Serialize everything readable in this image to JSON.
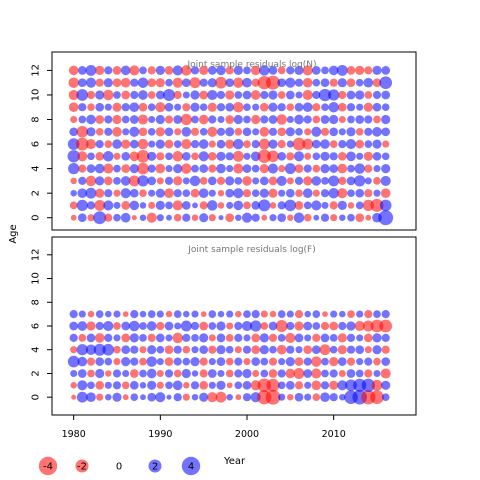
{
  "chart_data": {
    "type": "scatter",
    "subtype": "bubble",
    "ylabel": "Age",
    "xlabel": "Year",
    "x_ticks": [
      1980,
      1990,
      2000,
      2010
    ],
    "x_range": [
      1977.5,
      2019.5
    ],
    "y_ticks": [
      0,
      2,
      4,
      6,
      8,
      10,
      12
    ],
    "colors": {
      "positive": "#0000ff",
      "negative": "#ff0000",
      "opacity": 0.55
    },
    "panels": [
      {
        "id": "panel-n",
        "title": "Joint sample residuals log(N)",
        "ylim": [
          -1,
          13.5
        ],
        "ages": [
          0,
          1,
          2,
          3,
          4,
          5,
          6,
          7,
          8,
          9,
          10,
          11,
          12
        ],
        "years": [
          1980,
          2016
        ],
        "rows": [
          [
            -0.4,
            0.9,
            -0.6,
            2.0,
            -0.8,
            0.7,
            1.1,
            -0.3,
            0.5,
            -1.2,
            0.6,
            0.4,
            -0.7,
            0.8,
            -0.5,
            1.0,
            -0.6,
            0.3,
            -0.9,
            0.5,
            1.2,
            0.8,
            -0.4,
            0.6,
            0.9,
            -0.5,
            1.3,
            -0.7,
            0.4,
            0.8,
            -0.6,
            0.5,
            0.7,
            -0.9,
            -0.4,
            1.1,
            2.6
          ],
          [
            -0.7,
            1.5,
            0.8,
            -1.4,
            1.2,
            0.6,
            -0.9,
            1.1,
            0.5,
            -0.6,
            1.0,
            0.7,
            -1.2,
            0.9,
            0.4,
            -0.8,
            1.3,
            -0.5,
            0.6,
            1.1,
            -0.7,
            0.9,
            1.7,
            -0.5,
            0.8,
            1.6,
            -0.9,
            0.7,
            1.2,
            0.6,
            -0.8,
            1.0,
            -0.5,
            0.7,
            -1.5,
            -2.0,
            1.6
          ],
          [
            0.5,
            1.1,
            1.4,
            -1.0,
            0.8,
            -0.6,
            1.2,
            0.9,
            -0.7,
            0.6,
            1.0,
            -1.1,
            0.8,
            0.7,
            -0.9,
            1.1,
            0.6,
            -0.5,
            0.9,
            1.2,
            -0.8,
            0.7,
            1.0,
            -1.0,
            0.6,
            0.9,
            -0.7,
            1.1,
            -0.6,
            0.8,
            1.3,
            -1.2,
            0.7,
            0.9,
            -0.8,
            0.6,
            -1.1
          ],
          [
            -0.5,
            0.8,
            -1.3,
            1.0,
            -0.9,
            0.7,
            1.1,
            -1.4,
            1.5,
            0.9,
            -0.6,
            0.8,
            -1.0,
            0.6,
            1.3,
            -0.7,
            0.9,
            -0.8,
            1.0,
            0.7,
            -1.1,
            0.6,
            0.9,
            -0.9,
            1.2,
            -0.6,
            0.8,
            -1.0,
            1.1,
            0.7,
            1.4,
            -0.8,
            0.9,
            1.5,
            0.6,
            -0.7,
            1.2
          ],
          [
            1.5,
            -0.8,
            0.9,
            1.1,
            -1.2,
            0.7,
            -0.9,
            1.0,
            -1.6,
            0.8,
            -1.1,
            0.6,
            1.0,
            -1.3,
            0.7,
            0.9,
            -0.8,
            1.1,
            0.6,
            -1.2,
            0.9,
            0.7,
            -1.0,
            1.2,
            -0.6,
            1.4,
            -0.9,
            0.8,
            -0.7,
            1.0,
            0.9,
            -1.1,
            0.7,
            1.3,
            -0.8,
            0.6,
            1.0
          ],
          [
            1.8,
            -1.2,
            0.7,
            -0.9,
            1.3,
            -0.6,
            0.9,
            -1.1,
            -1.9,
            1.0,
            -0.8,
            0.7,
            -1.3,
            0.9,
            -0.7,
            1.2,
            -0.9,
            1.0,
            0.8,
            -1.4,
            0.6,
            1.1,
            -2.1,
            -1.6,
            0.9,
            -0.8,
            1.2,
            -0.6,
            0.7,
            1.0,
            0.8,
            -0.9,
            1.1,
            0.6,
            -1.0,
            0.9,
            0.7
          ],
          [
            1.6,
            -1.9,
            -1.2,
            0.8,
            -0.7,
            1.1,
            -1.0,
            0.9,
            -1.3,
            0.6,
            1.0,
            -0.9,
            0.7,
            -1.2,
            0.8,
            1.1,
            -0.6,
            0.9,
            -1.0,
            1.3,
            -0.7,
            0.8,
            -1.4,
            1.0,
            -0.8,
            0.6,
            -1.9,
            -1.4,
            0.9,
            1.1,
            -0.7,
            0.8,
            1.2,
            -0.9,
            0.7,
            1.0,
            -0.6
          ],
          [
            0.9,
            -1.6,
            1.0,
            -0.7,
            0.8,
            -1.1,
            0.6,
            1.2,
            -0.9,
            0.7,
            -1.0,
            0.9,
            -0.6,
            1.1,
            -0.8,
            0.7,
            -1.2,
            0.8,
            1.0,
            -0.7,
            0.9,
            0.6,
            -1.1,
            0.8,
            -0.9,
            1.0,
            0.7,
            -0.6,
            1.2,
            -0.8,
            0.9,
            0.6,
            1.0,
            -0.7,
            0.8,
            1.1,
            0.9
          ],
          [
            -0.6,
            0.7,
            1.1,
            -0.9,
            0.8,
            -1.0,
            0.7,
            0.9,
            -1.2,
            0.6,
            1.0,
            -0.8,
            0.9,
            -1.5,
            0.7,
            -1.1,
            0.8,
            0.6,
            -0.9,
            1.0,
            0.7,
            -1.0,
            0.8,
            0.9,
            -1.3,
            0.6,
            1.1,
            0.8,
            -0.7,
            0.9,
            1.0,
            -0.6,
            0.7,
            0.9,
            0.8,
            -0.7,
            1.0
          ],
          [
            -1.1,
            0.8,
            -0.7,
            0.9,
            0.6,
            -1.0,
            0.8,
            1.1,
            -0.9,
            0.7,
            -1.2,
            0.9,
            0.6,
            -0.8,
            1.0,
            0.7,
            -1.0,
            0.8,
            0.9,
            -1.3,
            0.7,
            0.6,
            -0.9,
            1.0,
            0.8,
            -0.7,
            0.9,
            1.1,
            -0.8,
            0.7,
            1.3,
            -0.9,
            0.8,
            0.6,
            -1.0,
            0.9,
            0.7
          ],
          [
            -1.2,
            1.6,
            -0.8,
            1.0,
            -1.3,
            0.7,
            -0.9,
            0.8,
            1.1,
            -0.7,
            0.9,
            1.7,
            -0.8,
            0.6,
            1.0,
            -0.9,
            1.2,
            0.8,
            -1.0,
            0.7,
            0.9,
            -1.1,
            0.8,
            1.0,
            -0.7,
            0.9,
            0.6,
            -1.2,
            0.8,
            1.8,
            1.5,
            -0.8,
            0.9,
            1.0,
            -0.7,
            0.8,
            0.9
          ],
          [
            -1.3,
            0.9,
            1.2,
            -0.8,
            1.0,
            -0.9,
            -1.1,
            0.8,
            1.3,
            -0.9,
            -1.0,
            0.7,
            -1.2,
            0.9,
            -1.4,
            0.8,
            1.0,
            -1.6,
            0.9,
            -1.3,
            1.1,
            -0.8,
            -2.1,
            -2.3,
            0.9,
            1.2,
            0.8,
            -1.1,
            0.7,
            0.9,
            -0.8,
            1.0,
            -0.9,
            0.7,
            1.1,
            -0.9,
            1.9
          ],
          [
            -1.1,
            0.9,
            1.4,
            -1.0,
            0.8,
            -0.9,
            1.1,
            -1.2,
            0.7,
            -0.8,
            1.0,
            -0.9,
            1.2,
            -1.3,
            0.8,
            -1.0,
            0.9,
            1.1,
            -0.8,
            1.0,
            0.7,
            -1.1,
            1.3,
            0.9,
            -0.7,
            0.8,
            1.0,
            -1.2,
            0.9,
            0.7,
            1.1,
            1.4,
            -0.9,
            -1.0,
            -0.8,
            1.0,
            0.9
          ]
        ]
      },
      {
        "id": "panel-f",
        "title": "Joint sample residuals log(F)",
        "ylim": [
          -1.5,
          13.5
        ],
        "ages": [
          0,
          1,
          2,
          3,
          4,
          5,
          6,
          7
        ],
        "years": [
          1980,
          2016
        ],
        "rows": [
          [
            -0.3,
            1.4,
            1.1,
            -0.6,
            0.5,
            1.0,
            -0.4,
            0.7,
            0.4,
            0.9,
            1.2,
            0.3,
            0.8,
            -0.6,
            0.5,
            1.0,
            -1.2,
            -1.4,
            0.5,
            -0.4,
            0.8,
            1.2,
            -2.4,
            -2.6,
            0.6,
            -0.5,
            0.9,
            0.6,
            -0.7,
            1.1,
            0.8,
            0.5,
            2.2,
            2.5,
            -2.4,
            -2.2,
            0.7
          ],
          [
            -0.5,
            1.2,
            0.7,
            -0.9,
            0.6,
            0.8,
            -0.7,
            0.9,
            0.5,
            1.0,
            -0.6,
            0.7,
            1.1,
            -0.5,
            0.8,
            -0.9,
            0.6,
            1.0,
            -0.4,
            0.7,
            0.9,
            -1.2,
            -2.2,
            -2.0,
            0.7,
            0.9,
            -0.8,
            0.6,
            -1.1,
            0.8,
            -1.0,
            1.2,
            1.6,
            2.0,
            2.1,
            -1.4,
            1.0
          ],
          [
            0.6,
            0.9,
            -0.7,
            1.0,
            -0.5,
            0.8,
            0.6,
            -0.9,
            0.7,
            1.1,
            -0.6,
            0.8,
            -0.7,
            1.0,
            0.5,
            -0.8,
            0.9,
            0.6,
            -0.7,
            0.8,
            1.0,
            -0.6,
            0.7,
            -0.9,
            0.8,
            -1.1,
            -1.4,
            0.9,
            -1.2,
            0.7,
            0.8,
            -0.6,
            0.9,
            0.7,
            -0.8,
            0.6,
            -1.2
          ],
          [
            1.6,
            1.1,
            -0.8,
            0.9,
            0.7,
            -0.6,
            1.0,
            0.8,
            -0.7,
            1.3,
            0.6,
            -0.9,
            0.8,
            0.7,
            1.0,
            -0.8,
            0.6,
            0.9,
            -0.7,
            0.8,
            -0.6,
            0.9,
            0.7,
            -0.8,
            0.6,
            1.0,
            -0.9,
            0.8,
            -1.3,
            0.7,
            -1.0,
            0.9,
            -0.8,
            0.6,
            0.8,
            -0.7,
            0.9
          ],
          [
            -0.6,
            1.5,
            1.3,
            1.7,
            1.6,
            -0.7,
            0.9,
            0.8,
            -0.6,
            1.0,
            0.7,
            -0.9,
            0.8,
            -0.7,
            0.6,
            0.9,
            -0.8,
            1.0,
            0.7,
            -0.6,
            0.8,
            -0.9,
            1.0,
            0.7,
            -1.1,
            0.8,
            0.6,
            -0.9,
            0.9,
            -1.4,
            0.7,
            -1.0,
            0.8,
            0.9,
            -0.6,
            1.0,
            -0.8
          ],
          [
            0.8,
            -0.7,
            0.9,
            -1.1,
            0.8,
            0.6,
            -0.9,
            1.0,
            0.7,
            -0.8,
            0.9,
            0.6,
            -1.3,
            0.8,
            0.7,
            1.0,
            -0.6,
            0.9,
            -0.7,
            0.8,
            0.6,
            -0.9,
            1.0,
            -0.8,
            0.7,
            -1.2,
            0.9,
            0.6,
            -0.8,
            0.9,
            0.7,
            -1.0,
            0.8,
            0.6,
            -0.9,
            1.0,
            0.8
          ],
          [
            0.9,
            1.1,
            -1.0,
            0.8,
            1.2,
            -0.7,
            0.9,
            1.3,
            0.7,
            1.1,
            -0.8,
            0.9,
            0.6,
            1.4,
            0.8,
            -0.9,
            0.7,
            1.0,
            -0.6,
            0.8,
            1.2,
            1.5,
            -0.7,
            0.9,
            -1.7,
            0.8,
            -1.0,
            0.9,
            0.7,
            -0.8,
            -0.9,
            0.8,
            1.0,
            -1.2,
            -1.4,
            -1.9,
            -1.9
          ],
          [
            0.8,
            0.6,
            -0.5,
            0.7,
            0.5,
            0.6,
            -0.4,
            0.8,
            0.5,
            0.7,
            0.6,
            -0.5,
            0.7,
            0.5,
            0.6,
            -0.4,
            0.7,
            0.5,
            0.6,
            -0.5,
            0.7,
            0.8,
            -0.6,
            -0.5,
            0.7,
            0.6,
            -0.8,
            0.5,
            0.7,
            -0.4,
            0.6,
            0.5,
            -0.7,
            0.6,
            -0.8,
            0.7,
            0.8
          ]
        ]
      }
    ],
    "legend": {
      "items": [
        {
          "label": "-4",
          "value": -4
        },
        {
          "label": "-2",
          "value": -2
        },
        {
          "label": "0",
          "value": 0
        },
        {
          "label": "2",
          "value": 2
        },
        {
          "label": "4",
          "value": 4
        }
      ],
      "title": "Year"
    }
  }
}
